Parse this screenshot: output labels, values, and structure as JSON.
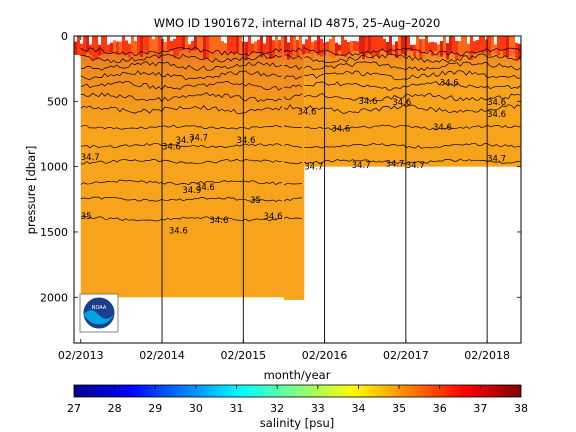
{
  "chart_data": {
    "type": "heatmap",
    "title": "WMO ID 1901672, internal ID 4875, 25–Aug–2020",
    "xlabel": "month/year",
    "ylabel": "pressure [dbar]",
    "x_tick_labels": [
      "02/2013",
      "02/2014",
      "02/2015",
      "02/2016",
      "02/2017",
      "02/2018"
    ],
    "x_tick_dates": [
      "2013-02",
      "2014-02",
      "2015-02",
      "2016-02",
      "2017-02",
      "2018-02"
    ],
    "xlim": [
      "2013-01",
      "2018-07"
    ],
    "ylim": [
      2350,
      0
    ],
    "y_ticks": [
      0,
      500,
      1000,
      1500,
      2000
    ],
    "y_reversed": true,
    "colorbar": {
      "label": "salinity [psu]",
      "min": 27,
      "max": 38,
      "ticks": [
        27,
        28,
        29,
        30,
        31,
        32,
        33,
        34,
        35,
        36,
        37,
        38
      ],
      "colormap": "jet"
    },
    "profile_depth_segments": [
      {
        "from": "2013-02",
        "to": "2015-08",
        "max_pressure": 2000
      },
      {
        "from": "2015-08",
        "to": "2015-11",
        "max_pressure": 2020
      },
      {
        "from": "2015-11",
        "to": "2018-07",
        "max_pressure": 1000
      }
    ],
    "vertical_reference_dates": [
      "2014-02",
      "2015-02",
      "2016-02",
      "2017-02",
      "2018-02"
    ],
    "contour_labels": [
      {
        "text": "34.7",
        "date": "2013-02",
        "pressure": 950
      },
      {
        "text": "35",
        "date": "2013-02",
        "pressure": 1400
      },
      {
        "text": "34.7",
        "date": "2014-04",
        "pressure": 820
      },
      {
        "text": "34.6",
        "date": "2014-02",
        "pressure": 870
      },
      {
        "text": "34.6",
        "date": "2014-07",
        "pressure": 1180
      },
      {
        "text": "34.6",
        "date": "2014-09",
        "pressure": 1430
      },
      {
        "text": "34.6",
        "date": "2015-05",
        "pressure": 1400
      },
      {
        "text": "34.6",
        "date": "2015-10",
        "pressure": 600
      },
      {
        "text": "34.6",
        "date": "2016-03",
        "pressure": 730
      },
      {
        "text": "34.6",
        "date": "2016-07",
        "pressure": 520
      },
      {
        "text": "34.6",
        "date": "2016-12",
        "pressure": 530
      },
      {
        "text": "34.6",
        "date": "2017-06",
        "pressure": 720
      },
      {
        "text": "34.6",
        "date": "2018-02",
        "pressure": 620
      },
      {
        "text": "34.7",
        "date": "2016-06",
        "pressure": 1010
      },
      {
        "text": "34.7",
        "date": "2016-11",
        "pressure": 1000
      },
      {
        "text": "34.7",
        "date": "2017-02",
        "pressure": 1010
      },
      {
        "text": "34.7",
        "date": "2018-02",
        "pressure": 960
      },
      {
        "text": "34.7",
        "date": "2015-11",
        "pressure": 1020
      },
      {
        "text": "34.9",
        "date": "2014-05",
        "pressure": 1200
      },
      {
        "text": "34.6",
        "date": "2015-01",
        "pressure": 820
      },
      {
        "text": "34.7",
        "date": "2014-06",
        "pressure": 800
      },
      {
        "text": "34.6",
        "date": "2017-07",
        "pressure": 380
      },
      {
        "text": "34.6",
        "date": "2018-02",
        "pressure": 530
      },
      {
        "text": "34.6",
        "date": "2014-03",
        "pressure": 1510
      },
      {
        "text": "35",
        "date": "2015-03",
        "pressure": 1280
      }
    ],
    "logo": "noaa-logo"
  }
}
